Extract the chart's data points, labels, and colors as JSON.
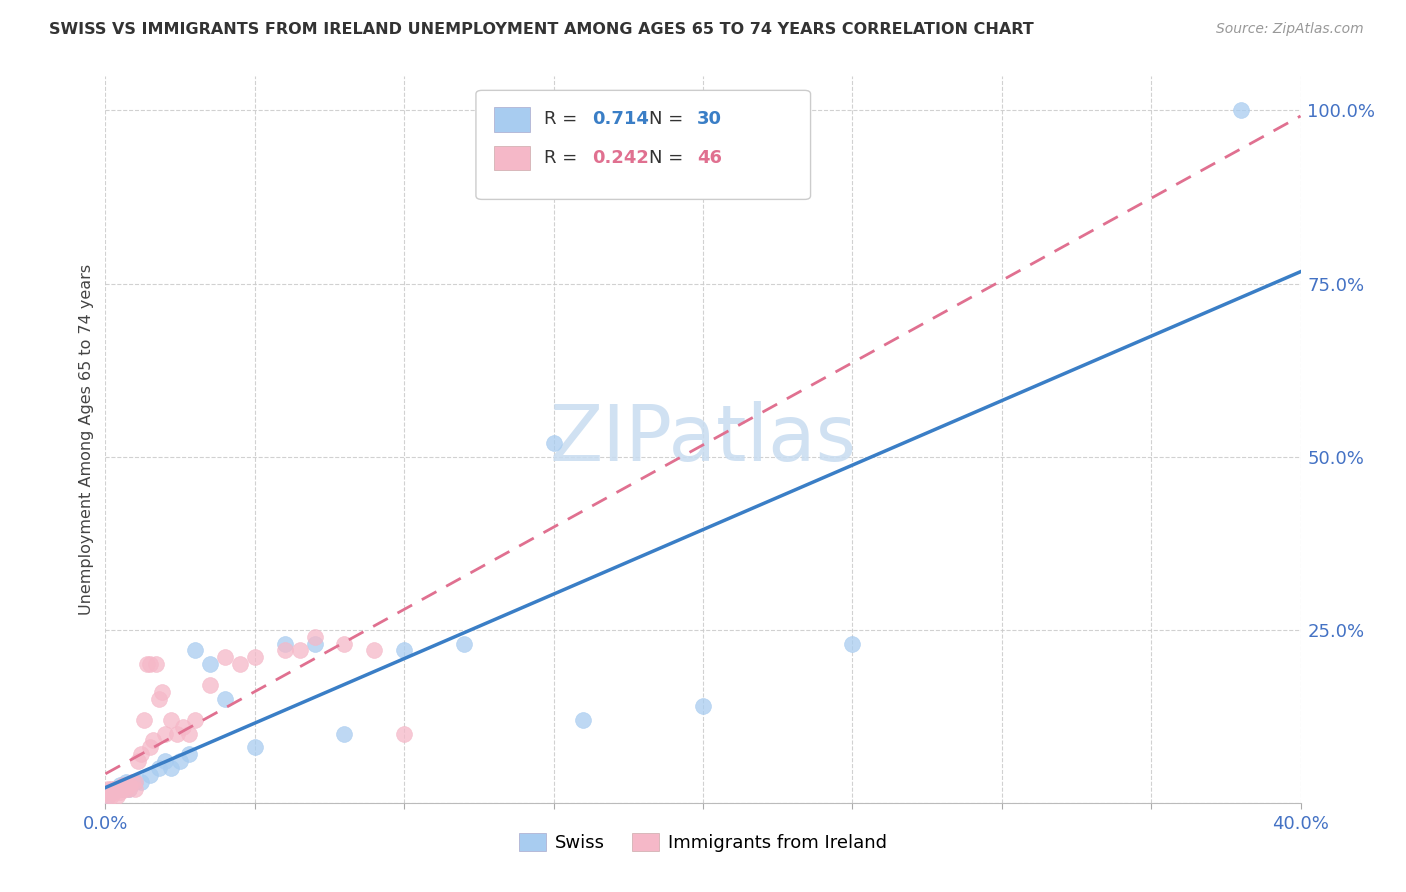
{
  "title": "SWISS VS IMMIGRANTS FROM IRELAND UNEMPLOYMENT AMONG AGES 65 TO 74 YEARS CORRELATION CHART",
  "source": "Source: ZipAtlas.com",
  "ylabel": "Unemployment Among Ages 65 to 74 years",
  "xlim": [
    0.0,
    0.4
  ],
  "ylim": [
    0.0,
    1.05
  ],
  "x_ticks": [
    0.0,
    0.05,
    0.1,
    0.15,
    0.2,
    0.25,
    0.3,
    0.35,
    0.4
  ],
  "y_ticks": [
    0.0,
    0.25,
    0.5,
    0.75,
    1.0
  ],
  "swiss_R": 0.714,
  "swiss_N": 30,
  "ireland_R": 0.242,
  "ireland_N": 46,
  "swiss_color": "#A8CCF0",
  "ireland_color": "#F5B8C8",
  "swiss_line_color": "#3A7EC6",
  "ireland_line_color": "#E07090",
  "axis_label_color": "#4472C4",
  "watermark_color": "#C8DCF0",
  "swiss_x": [
    0.001,
    0.002,
    0.003,
    0.004,
    0.005,
    0.006,
    0.007,
    0.008,
    0.01,
    0.012,
    0.015,
    0.018,
    0.02,
    0.022,
    0.025,
    0.028,
    0.03,
    0.035,
    0.04,
    0.05,
    0.06,
    0.07,
    0.08,
    0.1,
    0.12,
    0.15,
    0.16,
    0.2,
    0.25,
    0.38
  ],
  "swiss_y": [
    0.01,
    0.015,
    0.02,
    0.02,
    0.025,
    0.02,
    0.03,
    0.02,
    0.03,
    0.03,
    0.04,
    0.05,
    0.06,
    0.05,
    0.06,
    0.07,
    0.22,
    0.2,
    0.15,
    0.08,
    0.23,
    0.23,
    0.1,
    0.22,
    0.23,
    0.52,
    0.12,
    0.14,
    0.23,
    1.0
  ],
  "ireland_x": [
    0.001,
    0.001,
    0.001,
    0.002,
    0.002,
    0.003,
    0.003,
    0.004,
    0.004,
    0.005,
    0.005,
    0.006,
    0.006,
    0.007,
    0.007,
    0.008,
    0.008,
    0.009,
    0.01,
    0.01,
    0.011,
    0.012,
    0.013,
    0.014,
    0.015,
    0.015,
    0.016,
    0.017,
    0.018,
    0.019,
    0.02,
    0.022,
    0.024,
    0.026,
    0.028,
    0.03,
    0.035,
    0.04,
    0.045,
    0.05,
    0.06,
    0.065,
    0.07,
    0.08,
    0.09,
    0.1
  ],
  "ireland_y": [
    0.01,
    0.015,
    0.02,
    0.01,
    0.02,
    0.015,
    0.02,
    0.01,
    0.02,
    0.015,
    0.02,
    0.02,
    0.025,
    0.02,
    0.025,
    0.02,
    0.025,
    0.03,
    0.02,
    0.03,
    0.06,
    0.07,
    0.12,
    0.2,
    0.2,
    0.08,
    0.09,
    0.2,
    0.15,
    0.16,
    0.1,
    0.12,
    0.1,
    0.11,
    0.1,
    0.12,
    0.17,
    0.21,
    0.2,
    0.21,
    0.22,
    0.22,
    0.24,
    0.23,
    0.22,
    0.1
  ]
}
